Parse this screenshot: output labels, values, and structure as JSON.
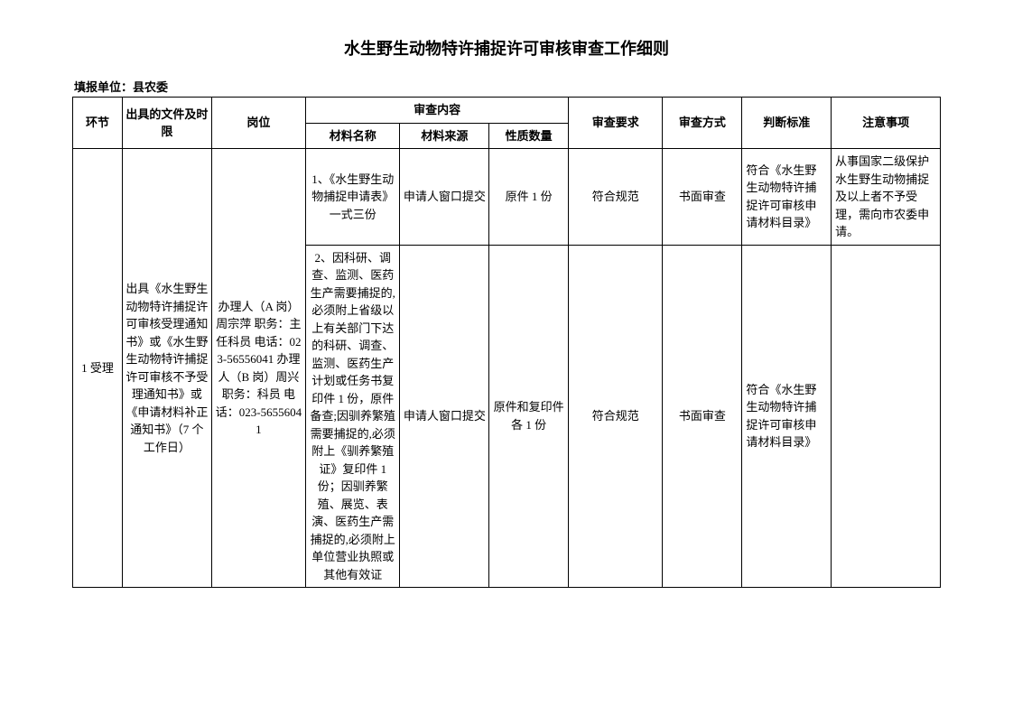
{
  "document": {
    "title": "水生野生动物特许捕捉许可审核审查工作细则",
    "reporting_unit_label": "填报单位：县农委"
  },
  "headers": {
    "stage": "环节",
    "doc_limit": "出具的文件及时限",
    "position": "岗位",
    "review_content": "审查内容",
    "material_name": "材料名称",
    "material_source": "材料来源",
    "nature_qty": "性质数量",
    "review_req": "审查要求",
    "review_method": "审查方式",
    "judgment_standard": "判断标准",
    "notes": "注意事项"
  },
  "rows": {
    "stage": "1 受理",
    "doc_limit": "出具《水生野生动物特许捕捉许可审核受理通知书》或《水生野生动物特许捕捉许可审核不予受理通知书》或《申请材料补正通知书》（7 个工作日）",
    "position": "办理人（A 岗）周宗萍 职务：主任科员 电话：023-56556041 办理人（B 岗）周兴 职务：科员 电话：023-56556041",
    "row1": {
      "material_name": "1、《水生野生动物捕捉申请表》一式三份",
      "material_source": "申请人窗口提交",
      "nature_qty": "原件 1 份",
      "review_req": "符合规范",
      "review_method": "书面审查",
      "judgment_standard": "符合《水生野生动物特许捕捉许可审核申请材料目录》",
      "notes": "从事国家二级保护水生野生动物捕捉及以上者不予受理，需向市农委申请。"
    },
    "row2": {
      "material_name": "2、因科研、调查、监测、医药生产需要捕捉的,必须附上省级以上有关部门下达的科研、调查、监测、医药生产计划或任务书复印件 1 份，原件备查;因驯养繁殖需要捕捉的,必须附上《驯养繁殖证》复印件 1 份；因驯养繁殖、展览、表演、医药生产需捕捉的,必须附上单位营业执照或其他有效证",
      "material_source": "申请人窗口提交",
      "nature_qty": "原件和复印件各 1 份",
      "review_req": "符合规范",
      "review_method": "书面审查",
      "judgment_standard": "符合《水生野生动物特许捕捉许可审核申请材料目录》",
      "notes": ""
    }
  }
}
